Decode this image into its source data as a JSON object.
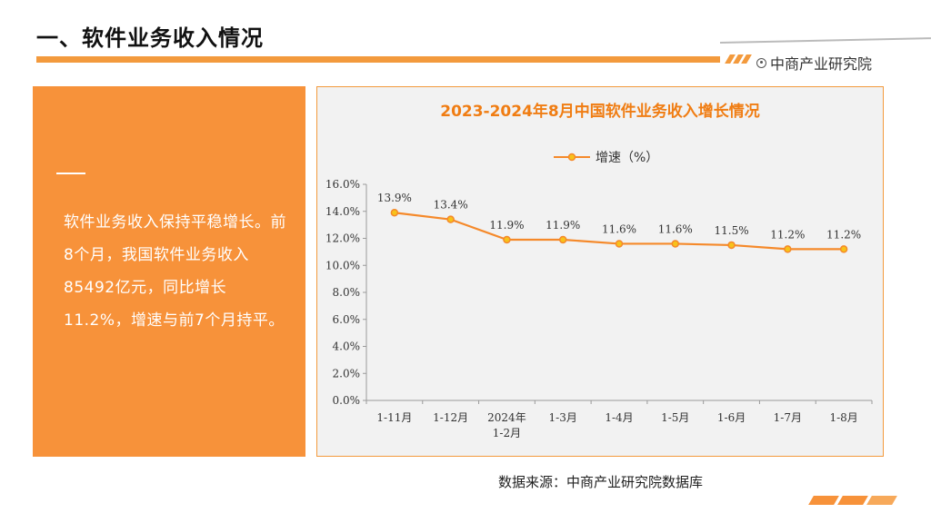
{
  "page": {
    "title": "一、软件业务收入情况",
    "brand": "中商产业研究院"
  },
  "panel": {
    "text": "软件业务收入保持平稳增长。前8个月，我国软件业务收入85492亿元，同比增长11.2%，增速与前7个月持平。"
  },
  "source": "数据来源：中商产业研究院数据库",
  "colors": {
    "accent": "#f39a3d",
    "line": "#f5892a",
    "title": "#f07d13"
  },
  "chart_data": {
    "type": "line",
    "title": "2023-2024年8月中国软件业务收入增长情况",
    "categories": [
      "1-11月",
      "1-12月",
      "2024年\n1-2月",
      "1-3月",
      "1-4月",
      "1-5月",
      "1-6月",
      "1-7月",
      "1-8月"
    ],
    "series": [
      {
        "name": "增速（%）",
        "values": [
          13.9,
          13.4,
          11.9,
          11.9,
          11.6,
          11.6,
          11.5,
          11.2,
          11.2
        ]
      }
    ],
    "value_labels": [
      "13.9%",
      "13.4%",
      "11.9%",
      "11.9%",
      "11.6%",
      "11.6%",
      "11.5%",
      "11.2%",
      "11.2%"
    ],
    "yticks": [
      "0.0%",
      "2.0%",
      "4.0%",
      "6.0%",
      "8.0%",
      "10.0%",
      "12.0%",
      "14.0%",
      "16.0%"
    ],
    "ylim": [
      0,
      16
    ],
    "grid": false,
    "legend": "top-center"
  }
}
